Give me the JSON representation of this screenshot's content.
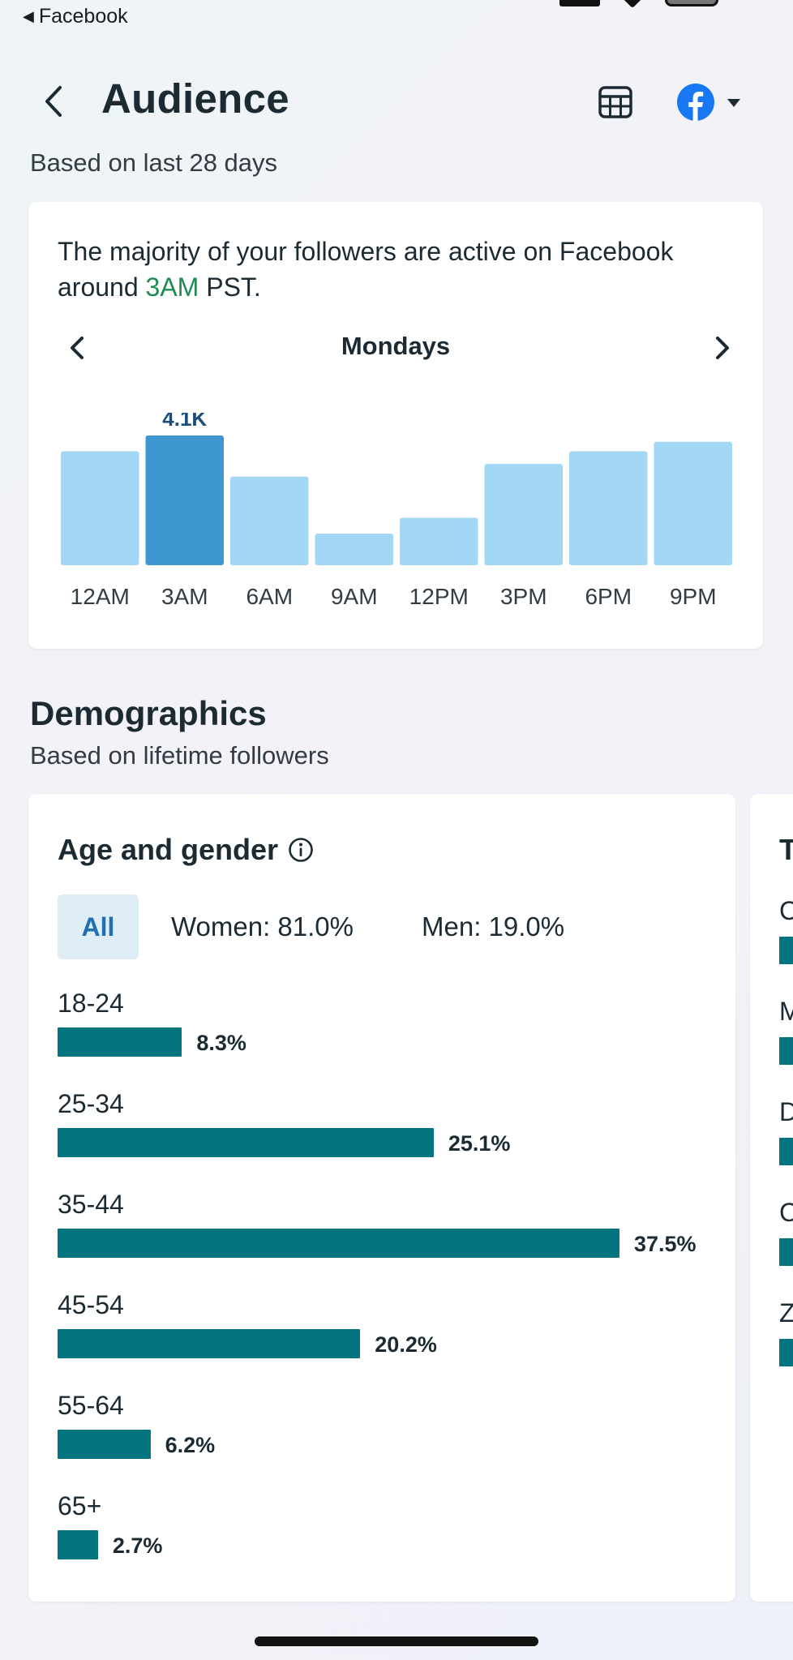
{
  "status_bar": {
    "back_app_label": "Facebook"
  },
  "header": {
    "title": "Audience"
  },
  "activity": {
    "subtitle": "Based on last 28 days",
    "text_before": "The majority of your followers are active on Facebook around ",
    "highlight": "3AM",
    "text_after": " PST.",
    "day": "Mondays",
    "highlight_value_label": "4.1K"
  },
  "chart_data": {
    "type": "bar",
    "categories": [
      "12AM",
      "3AM",
      "6AM",
      "9AM",
      "12PM",
      "3PM",
      "6PM",
      "9PM"
    ],
    "values": [
      3.6,
      4.1,
      2.8,
      1.0,
      1.5,
      3.2,
      3.6,
      3.9
    ],
    "highlight_index": 1,
    "data_labels": {
      "1": "4.1K"
    },
    "ylim": [
      0,
      4.1
    ],
    "colors": {
      "bar": "#a2d7f6",
      "highlight": "#3f97cf",
      "label": "#1a4c7d"
    }
  },
  "demographics": {
    "title": "Demographics",
    "subtitle": "Based on lifetime followers",
    "age_gender": {
      "title": "Age and gender",
      "filters": {
        "all": "All",
        "women": "Women: 81.0%",
        "men": "Men: 19.0%"
      },
      "rows": [
        {
          "label": "18-24",
          "value": 8.3,
          "pct": "8.3%"
        },
        {
          "label": "25-34",
          "value": 25.1,
          "pct": "25.1%"
        },
        {
          "label": "35-44",
          "value": 37.5,
          "pct": "37.5%"
        },
        {
          "label": "45-54",
          "value": 20.2,
          "pct": "20.2%"
        },
        {
          "label": "55-64",
          "value": 6.2,
          "pct": "6.2%"
        },
        {
          "label": "65+",
          "value": 2.7,
          "pct": "2.7%"
        }
      ]
    },
    "next_card": {
      "title_initial": "T",
      "row_initials": [
        "C",
        "M",
        "D",
        "C",
        "Z"
      ]
    }
  },
  "colors": {
    "accent": "#02757e",
    "highlight_text": "#1f8a54",
    "facebook": "#1877f2"
  },
  "icons": [
    "back-chevron-icon",
    "table-icon",
    "facebook-icon",
    "caret-down-icon",
    "chevron-left-icon",
    "chevron-right-icon",
    "info-icon"
  ]
}
